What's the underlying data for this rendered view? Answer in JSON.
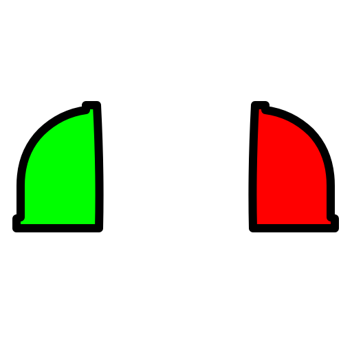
{
  "shapes": {
    "left": {
      "icon": "green-quarter-dome-shape",
      "fill": "#00ff00",
      "outline": "#000000"
    },
    "right": {
      "icon": "red-quarter-dome-shape",
      "fill": "#ff0000",
      "outline": "#000000"
    }
  },
  "background": "#ffffff"
}
